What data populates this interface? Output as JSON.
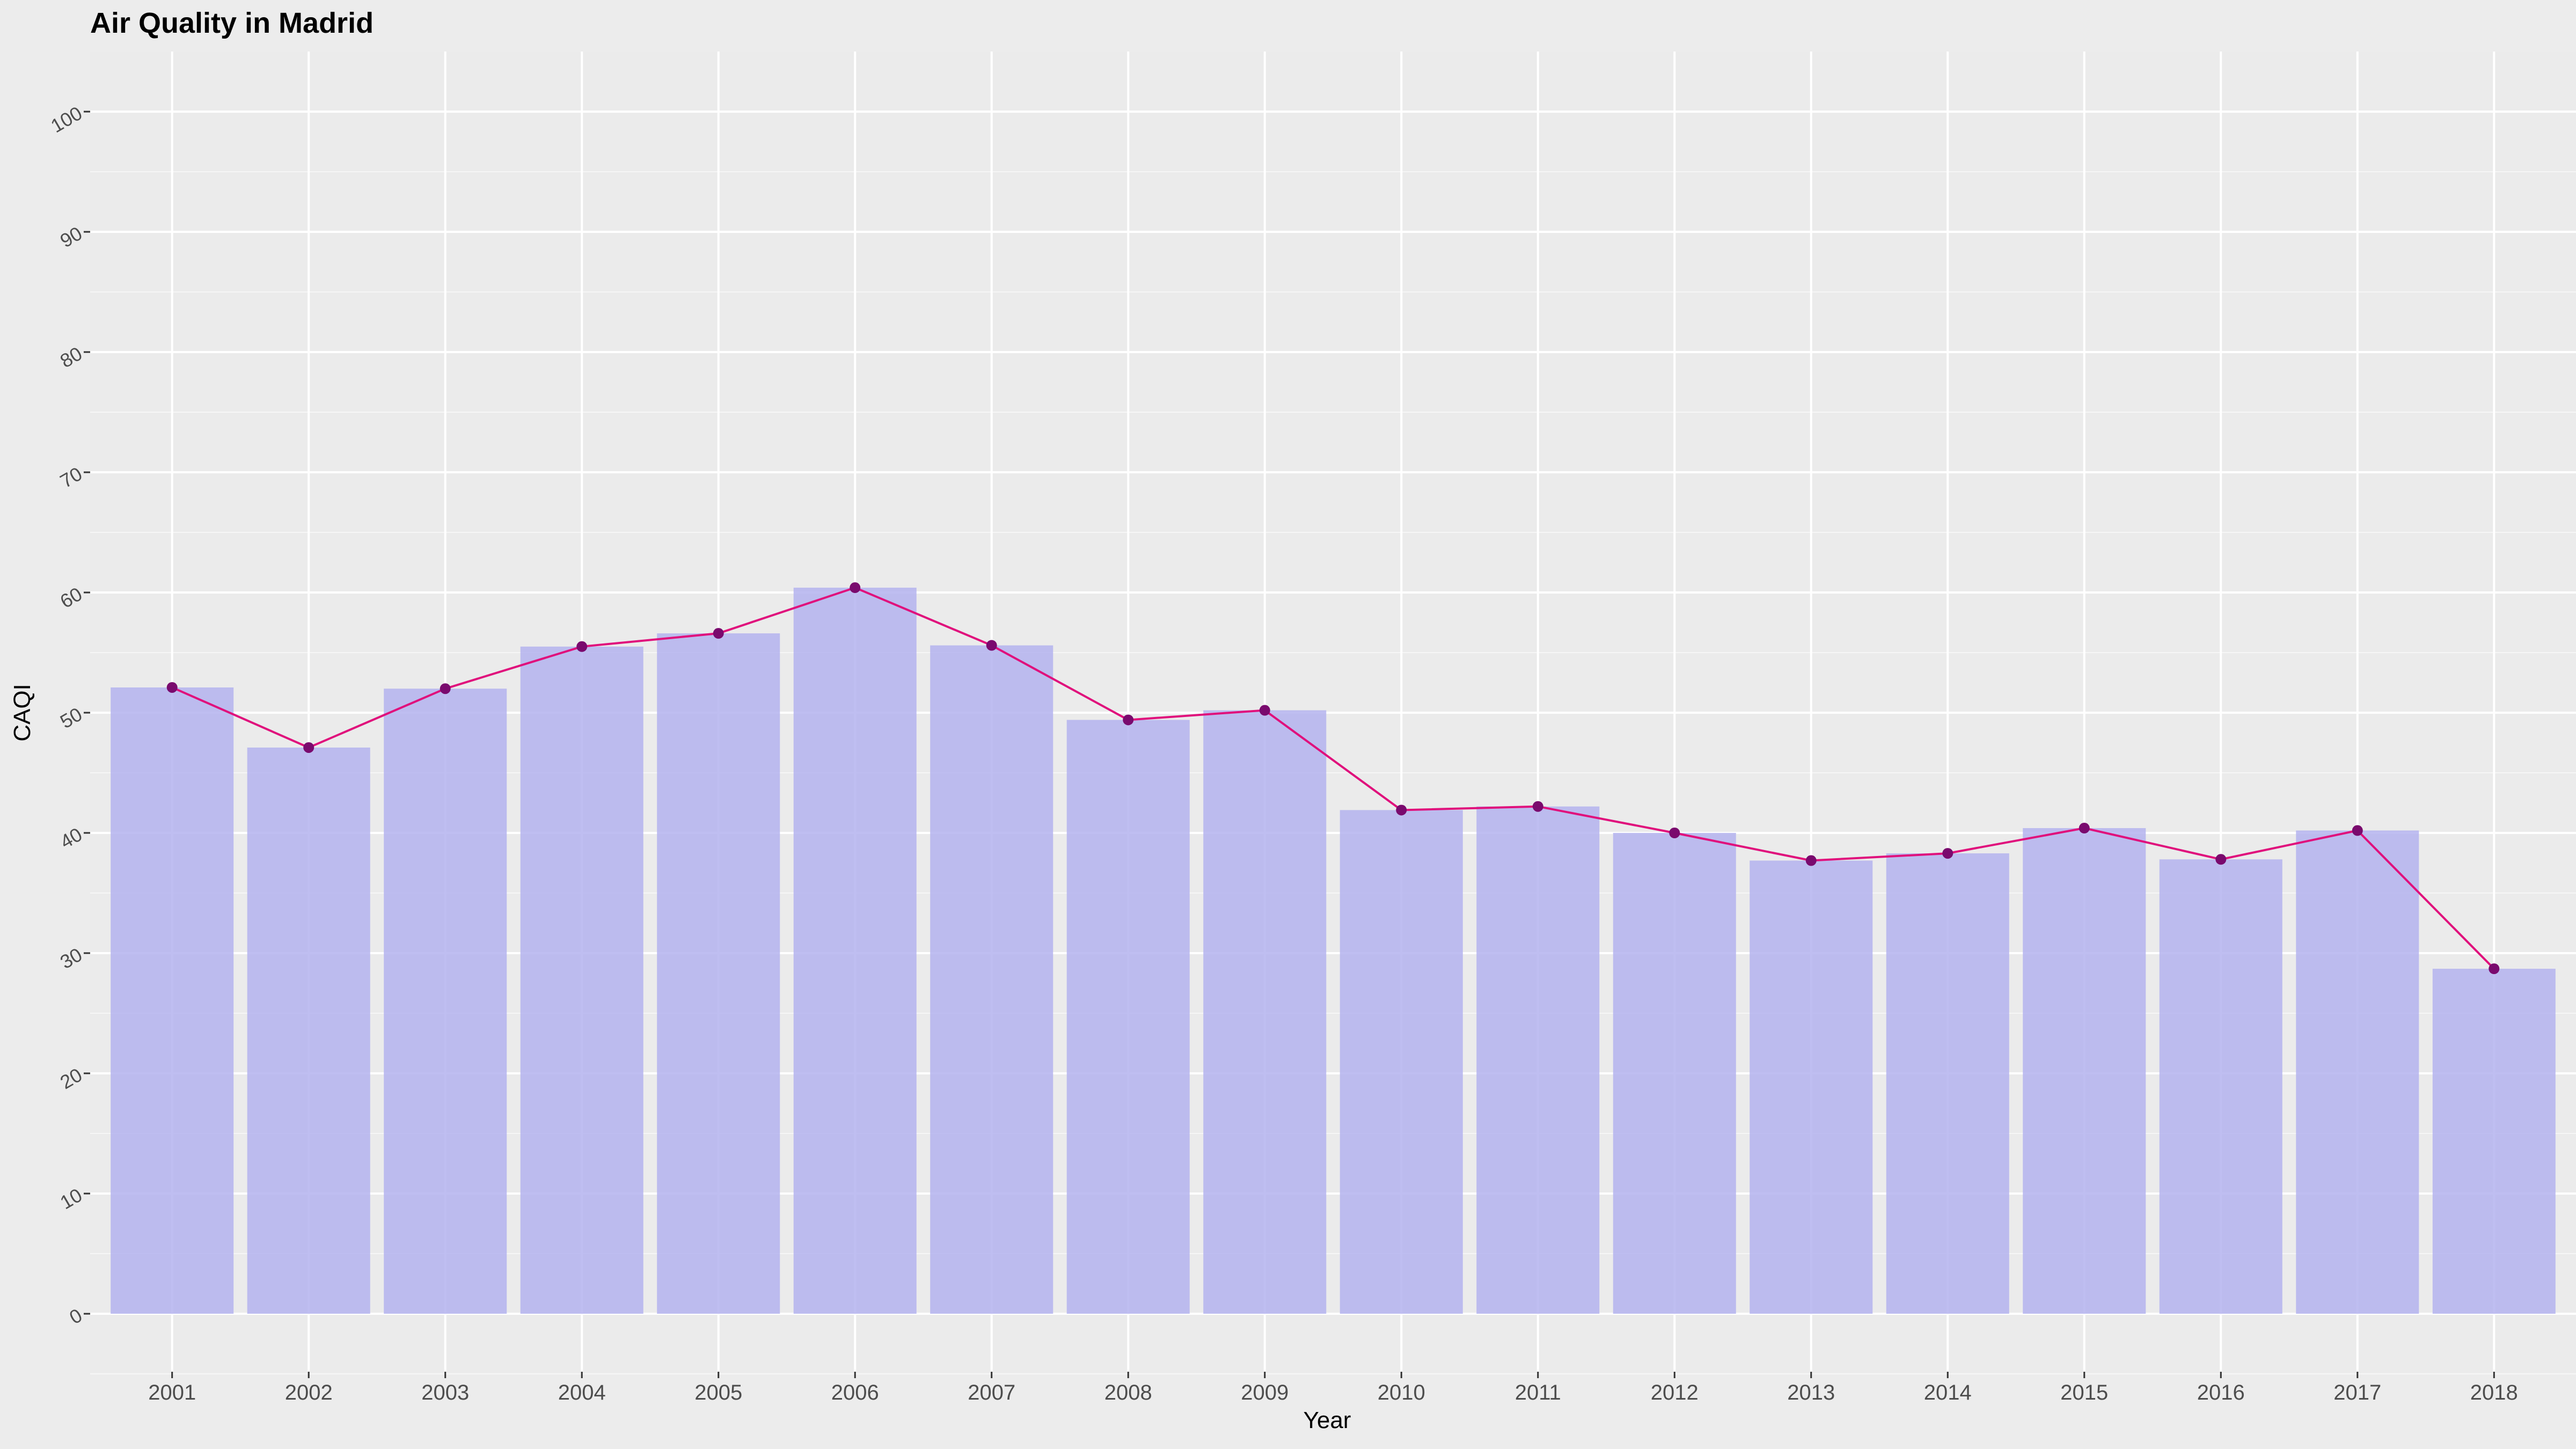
{
  "chart_data": {
    "type": "bar",
    "title": "Air Quality in Madrid",
    "xlabel": "Year",
    "ylabel": "CAQI",
    "categories": [
      "2001",
      "2002",
      "2003",
      "2004",
      "2005",
      "2006",
      "2007",
      "2008",
      "2009",
      "2010",
      "2011",
      "2012",
      "2013",
      "2014",
      "2015",
      "2016",
      "2017",
      "2018"
    ],
    "series": [
      {
        "type": "bar",
        "values": [
          52.1,
          47.1,
          52.0,
          55.5,
          56.6,
          60.4,
          55.6,
          49.4,
          50.2,
          41.9,
          42.2,
          40.0,
          37.7,
          38.3,
          40.4,
          37.8,
          40.2,
          28.7
        ]
      },
      {
        "type": "line",
        "values": [
          52.1,
          47.1,
          52.0,
          55.5,
          56.6,
          60.4,
          55.6,
          49.4,
          50.2,
          41.9,
          42.2,
          40.0,
          37.7,
          38.3,
          40.4,
          37.8,
          40.2,
          28.7
        ]
      }
    ],
    "ylim": [
      -5,
      105
    ],
    "yticks": [
      0,
      10,
      20,
      30,
      40,
      50,
      60,
      70,
      80,
      90,
      100
    ],
    "grid": true,
    "colors": {
      "bar": "#b4b3ef",
      "line": "#e0107c",
      "point": "#7a0a6e",
      "panel": "#ebebeb",
      "grid": "#ffffff"
    }
  }
}
